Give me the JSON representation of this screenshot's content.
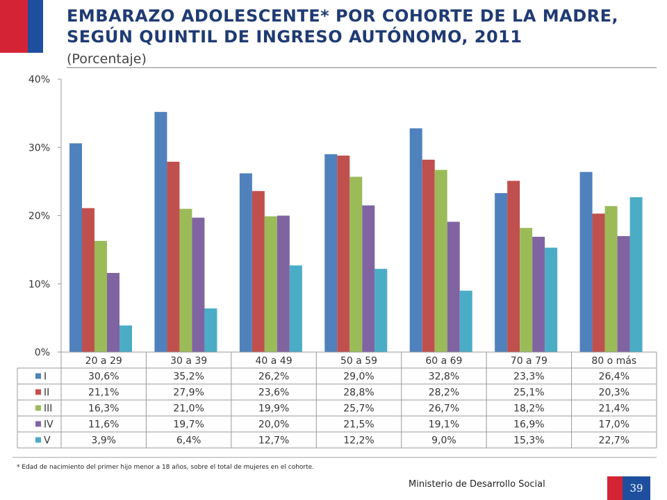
{
  "header": {
    "title": "EMBARAZO ADOLESCENTE* POR COHORTE DE LA MADRE, SEGÚN QUINTIL DE INGRESO AUTÓNOMO, 2011",
    "subtitle": "(Porcentaje)"
  },
  "chart_data": {
    "type": "bar",
    "categories": [
      "20 a 29",
      "30 a 39",
      "40 a 49",
      "50 a 59",
      "60 a 69",
      "70 a 79",
      "80 o más"
    ],
    "ylim": [
      0,
      40
    ],
    "yticks": [
      "0%",
      "10%",
      "20%",
      "30%",
      "40%"
    ],
    "grid": false,
    "legend": "data-table",
    "series": [
      {
        "name": "I",
        "color": "#4f81bd",
        "values": [
          30.6,
          35.2,
          26.2,
          29.0,
          32.8,
          23.3,
          26.4
        ],
        "labels": [
          "30,6%",
          "35,2%",
          "26,2%",
          "29,0%",
          "32,8%",
          "23,3%",
          "26,4%"
        ]
      },
      {
        "name": "II",
        "color": "#c0504d",
        "values": [
          21.1,
          27.9,
          23.6,
          28.8,
          28.2,
          25.1,
          20.3
        ],
        "labels": [
          "21,1%",
          "27,9%",
          "23,6%",
          "28,8%",
          "28,2%",
          "25,1%",
          "20,3%"
        ]
      },
      {
        "name": "III",
        "color": "#9bbb59",
        "values": [
          16.3,
          21.0,
          19.9,
          25.7,
          26.7,
          18.2,
          21.4
        ],
        "labels": [
          "16,3%",
          "21,0%",
          "19,9%",
          "25,7%",
          "26,7%",
          "18,2%",
          "21,4%"
        ]
      },
      {
        "name": "IV",
        "color": "#8064a2",
        "values": [
          11.6,
          19.7,
          20.0,
          21.5,
          19.1,
          16.9,
          17.0
        ],
        "labels": [
          "11,6%",
          "19,7%",
          "20,0%",
          "21,5%",
          "19,1%",
          "16,9%",
          "17,0%"
        ]
      },
      {
        "name": "V",
        "color": "#4bacc6",
        "values": [
          3.9,
          6.4,
          12.7,
          12.2,
          9.0,
          15.3,
          22.7
        ],
        "labels": [
          "3,9%",
          "6,4%",
          "12,7%",
          "12,2%",
          "9,0%",
          "15,3%",
          "22,7%"
        ]
      }
    ]
  },
  "footer": {
    "note": "* Edad de nacimiento del primer hijo menor a 18 años, sobre el total de mujeres en el cohorte.",
    "ministry": "Ministerio de Desarrollo Social",
    "page": "39"
  }
}
